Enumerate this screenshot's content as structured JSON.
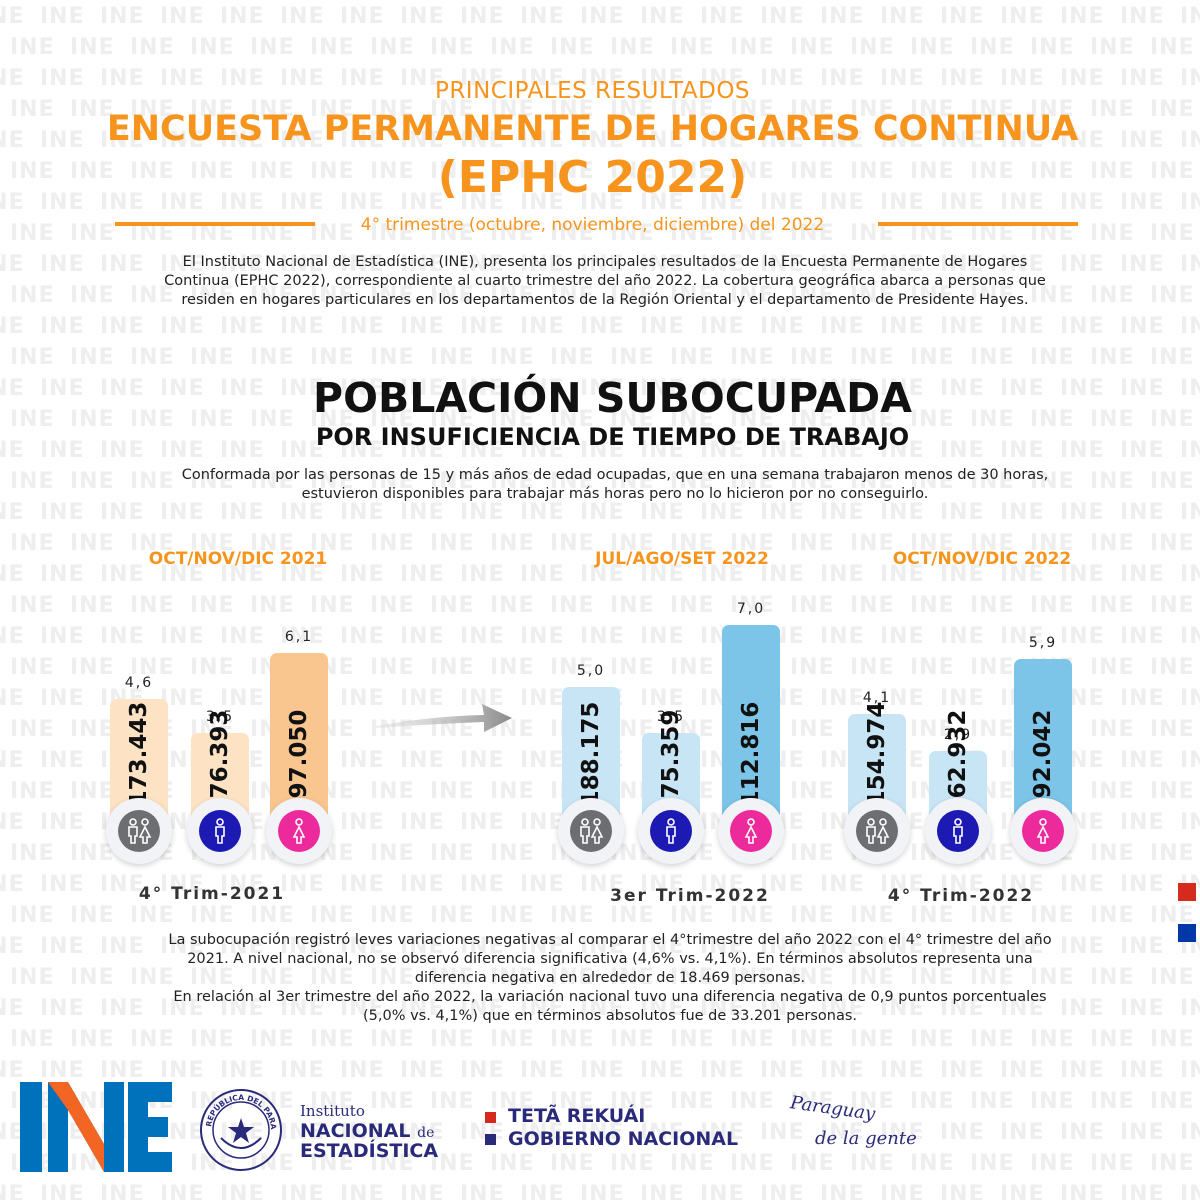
{
  "watermark": "INE",
  "header": {
    "pre_title": "PRINCIPALES RESULTADOS",
    "title_line1": "ENCUESTA PERMANENTE DE HOGARES CONTINUA",
    "title_line2": "(EPHC 2022)",
    "period": "4° trimestre  (octubre, noviembre, diciembre) del 2022",
    "intro": "El Instituto Nacional de Estadística (INE), presenta los principales resultados de la Encuesta Permanente de Hogares Continua (EPHC 2022), correspondiente al cuarto trimestre del año 2022.  La cobertura geográfica abarca a personas que residen en hogares particulares en los departamentos de la Región Oriental y el departamento de Presidente Hayes."
  },
  "section": {
    "title": "POBLACIÓN SUBOCUPADA",
    "subtitle": "POR INSUFICIENCIA DE TIEMPO DE TRABAJO",
    "definition": "Conformada por las personas de 15 y más años de edad ocupadas, que en una semana trabajaron menos de 30 horas, estuvieron disponibles para trabajar más horas pero no lo hicieron por no conseguirlo."
  },
  "colors": {
    "accent": "#f7941d",
    "bar_2021": "#fde3c4",
    "bar_2021_female": "#f9c690",
    "bar_2022": "#c8e5f6",
    "bar_2022_female": "#7cc4e8",
    "icon_total": "#6d6e71",
    "icon_male": "#1d1ab3",
    "icon_female": "#ec2a9c"
  },
  "icons": [
    "people-icon",
    "male-icon",
    "female-icon"
  ],
  "chart_data": [
    {
      "type": "bar",
      "title": "OCT/NOV/DIC  2021",
      "xlabel": "4° Trim-2021",
      "categories": [
        "Total",
        "Hombres",
        "Mujeres"
      ],
      "rates": [
        "4,6",
        "3,5",
        "6,1"
      ],
      "rate_values": [
        4.6,
        3.5,
        6.1
      ],
      "counts": [
        "173.443",
        "76.393",
        "97.050"
      ],
      "count_values": [
        173443,
        76393,
        97050
      ],
      "ylim": [
        0,
        7
      ]
    },
    {
      "type": "bar",
      "title": "JUL/AGO/SET 2022",
      "xlabel": "3er Trim-2022",
      "categories": [
        "Total",
        "Hombres",
        "Mujeres"
      ],
      "rates": [
        "5,0",
        "3,5",
        "7,0"
      ],
      "rate_values": [
        5.0,
        3.5,
        7.0
      ],
      "counts": [
        "188.175",
        "75.359",
        "112.816"
      ],
      "count_values": [
        188175,
        75359,
        112816
      ],
      "ylim": [
        0,
        7
      ]
    },
    {
      "type": "bar",
      "title": "OCT/NOV/DIC 2022",
      "xlabel": "4° Trim-2022",
      "categories": [
        "Total",
        "Hombres",
        "Mujeres"
      ],
      "rates": [
        "4,1",
        "2,9",
        "5,9"
      ],
      "rate_values": [
        4.1,
        2.9,
        5.9
      ],
      "counts": [
        "154.974",
        "62.932",
        "92.042"
      ],
      "count_values": [
        154974,
        62932,
        92042
      ],
      "ylim": [
        0,
        7
      ]
    }
  ],
  "summary": {
    "line1": "La subocupación registró leves variaciones negativas al comparar el 4°trimestre del año 2022 con el 4° trimestre del año 2021. A nivel nacional, no se observó diferencia significativa (4,6% vs. 4,1%). En términos absolutos representa una diferencia negativa en alrededor de 18.469 personas.",
    "line2": "En relación al 3er trimestre del año 2022, la variación nacional tuvo una diferencia negativa de 0,9 puntos porcentuales (5,0% vs. 4,1%) que en términos absolutos fue de 33.201 personas."
  },
  "footer": {
    "logo_text": "INE",
    "institute_line1": "Instituto",
    "institute_line2": "NACIONAL",
    "institute_de": "de",
    "institute_line3": "ESTADÍSTICA",
    "seal_text": "REPÚBLICA DEL PARAGUAY",
    "gov_line1": "TETÃ REKUÁI",
    "gov_line2": "GOBIERNO NACIONAL",
    "slogan_line1": "Paraguay",
    "slogan_line2": "de la gente"
  }
}
